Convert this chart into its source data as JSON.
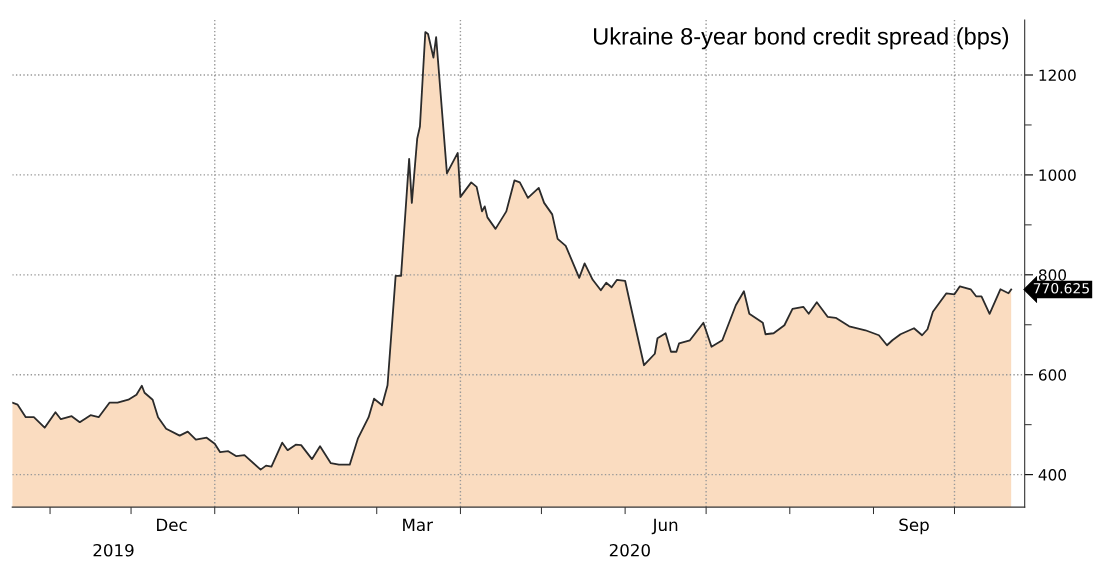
{
  "chart_data": {
    "type": "area",
    "title": "Ukraine 8-year bond credit spread (bps)",
    "x": [
      "2019-10-18",
      "2019-10-20",
      "2019-10-23",
      "2019-10-26",
      "2019-10-30",
      "2019-11-03",
      "2019-11-05",
      "2019-11-09",
      "2019-11-12",
      "2019-11-16",
      "2019-11-19",
      "2019-11-23",
      "2019-11-26",
      "2019-11-30",
      "2019-12-03",
      "2019-12-05",
      "2019-12-06",
      "2019-12-09",
      "2019-12-11",
      "2019-12-14",
      "2019-12-19",
      "2019-12-22",
      "2019-12-25",
      "2019-12-29",
      "2020-01-01",
      "2020-01-03",
      "2020-01-06",
      "2020-01-09",
      "2020-01-12",
      "2020-01-18",
      "2020-01-20",
      "2020-01-22",
      "2020-01-26",
      "2020-01-28",
      "2020-01-31",
      "2020-02-02",
      "2020-02-06",
      "2020-02-09",
      "2020-02-13",
      "2020-02-16",
      "2020-02-20",
      "2020-02-23",
      "2020-02-27",
      "2020-02-29",
      "2020-03-03",
      "2020-03-05",
      "2020-03-08",
      "2020-03-10",
      "2020-03-13",
      "2020-03-14",
      "2020-03-16",
      "2020-03-17",
      "2020-03-19",
      "2020-03-20",
      "2020-03-22",
      "2020-03-23",
      "2020-03-27",
      "2020-03-31",
      "2020-04-01",
      "2020-04-05",
      "2020-04-07",
      "2020-04-09",
      "2020-04-10",
      "2020-04-11",
      "2020-04-14",
      "2020-04-18",
      "2020-04-21",
      "2020-04-23",
      "2020-04-26",
      "2020-04-30",
      "2020-05-02",
      "2020-05-05",
      "2020-05-07",
      "2020-05-10",
      "2020-05-15",
      "2020-05-17",
      "2020-05-20",
      "2020-05-23",
      "2020-05-25",
      "2020-05-27",
      "2020-05-29",
      "2020-06-01",
      "2020-06-03",
      "2020-06-08",
      "2020-06-12",
      "2020-06-13",
      "2020-06-16",
      "2020-06-18",
      "2020-06-20",
      "2020-06-21",
      "2020-06-25",
      "2020-06-30",
      "2020-07-03",
      "2020-07-07",
      "2020-07-12",
      "2020-07-15",
      "2020-07-17",
      "2020-07-22",
      "2020-07-23",
      "2020-07-26",
      "2020-07-30",
      "2020-08-02",
      "2020-08-06",
      "2020-08-08",
      "2020-08-11",
      "2020-08-15",
      "2020-08-18",
      "2020-08-23",
      "2020-08-29",
      "2020-09-03",
      "2020-09-06",
      "2020-09-08",
      "2020-09-11",
      "2020-09-16",
      "2020-09-19",
      "2020-09-21",
      "2020-09-23",
      "2020-09-28",
      "2020-10-01",
      "2020-10-03",
      "2020-10-07",
      "2020-10-09",
      "2020-10-11",
      "2020-10-14",
      "2020-10-18",
      "2020-10-21",
      "2020-10-22"
    ],
    "series": [
      {
        "color": "#fadcc0",
        "values": [
          544,
          540,
          515,
          515,
          494,
          525,
          511,
          517,
          505,
          519,
          515,
          544,
          544,
          550,
          560,
          578,
          564,
          550,
          515,
          492,
          478,
          486,
          470,
          474,
          462,
          445,
          447,
          437,
          439,
          410,
          418,
          416,
          464,
          449,
          460,
          459,
          431,
          457,
          423,
          420,
          420,
          472,
          515,
          552,
          539,
          579,
          798,
          798,
          1032,
          944,
          1073,
          1097,
          1286,
          1282,
          1235,
          1276,
          1003,
          1044,
          956,
          985,
          976,
          927,
          937,
          915,
          892,
          927,
          989,
          985,
          954,
          974,
          944,
          921,
          872,
          858,
          794,
          823,
          790,
          769,
          784,
          775,
          790,
          788,
          739,
          619,
          642,
          673,
          683,
          646,
          646,
          663,
          669,
          704,
          656,
          669,
          739,
          767,
          722,
          704,
          681,
          683,
          699,
          732,
          736,
          722,
          745,
          716,
          714,
          697,
          689,
          679,
          659,
          669,
          681,
          693,
          679,
          691,
          726,
          763,
          761,
          777,
          771,
          757,
          757,
          722,
          771,
          763,
          770.625
        ]
      }
    ],
    "xlim": [
      "2019-10-18",
      "2020-10-27"
    ],
    "xticks": [
      {
        "value": "2019-11-01",
        "label": null
      },
      {
        "value": "2019-12-01",
        "label": null
      },
      {
        "value": "2019-12-16",
        "label": "Dec"
      },
      {
        "value": "2020-01-01",
        "label": null
      },
      {
        "value": "2020-02-01",
        "label": null
      },
      {
        "value": "2020-03-01",
        "label": null
      },
      {
        "value": "2020-03-16",
        "label": "Mar"
      },
      {
        "value": "2020-04-01",
        "label": null
      },
      {
        "value": "2020-05-01",
        "label": null
      },
      {
        "value": "2020-06-01",
        "label": null
      },
      {
        "value": "2020-06-16",
        "label": "Jun"
      },
      {
        "value": "2020-07-01",
        "label": null
      },
      {
        "value": "2020-08-01",
        "label": null
      },
      {
        "value": "2020-09-01",
        "label": null
      },
      {
        "value": "2020-09-16",
        "label": "Sep"
      },
      {
        "value": "2020-10-01",
        "label": null
      }
    ],
    "ylim": [
      335,
      1310
    ],
    "yticks": [
      400,
      {
        "value": 500,
        "label": null
      },
      600,
      {
        "value": 700,
        "label": null
      },
      800,
      {
        "value": 900,
        "label": null
      },
      1000,
      {
        "value": 1100,
        "label": null
      },
      1200
    ],
    "grid": "y",
    "ref_lines": [
      {
        "axis": "x",
        "value": "2020-01-01",
        "color": "#999999",
        "line_style": "dotted"
      },
      {
        "axis": "x",
        "value": "2020-04-01",
        "color": "#999999",
        "line_style": "dotted"
      },
      {
        "axis": "x",
        "value": "2020-07-01",
        "color": "#999999",
        "line_style": "dotted"
      },
      {
        "axis": "x",
        "value": "2020-10-01",
        "color": "#999999",
        "line_style": "dotted"
      }
    ],
    "annotations": [
      "2019",
      "2020",
      {
        "text": "770.625",
        "x": "2020-10-22",
        "y": 770.625
      }
    ]
  }
}
